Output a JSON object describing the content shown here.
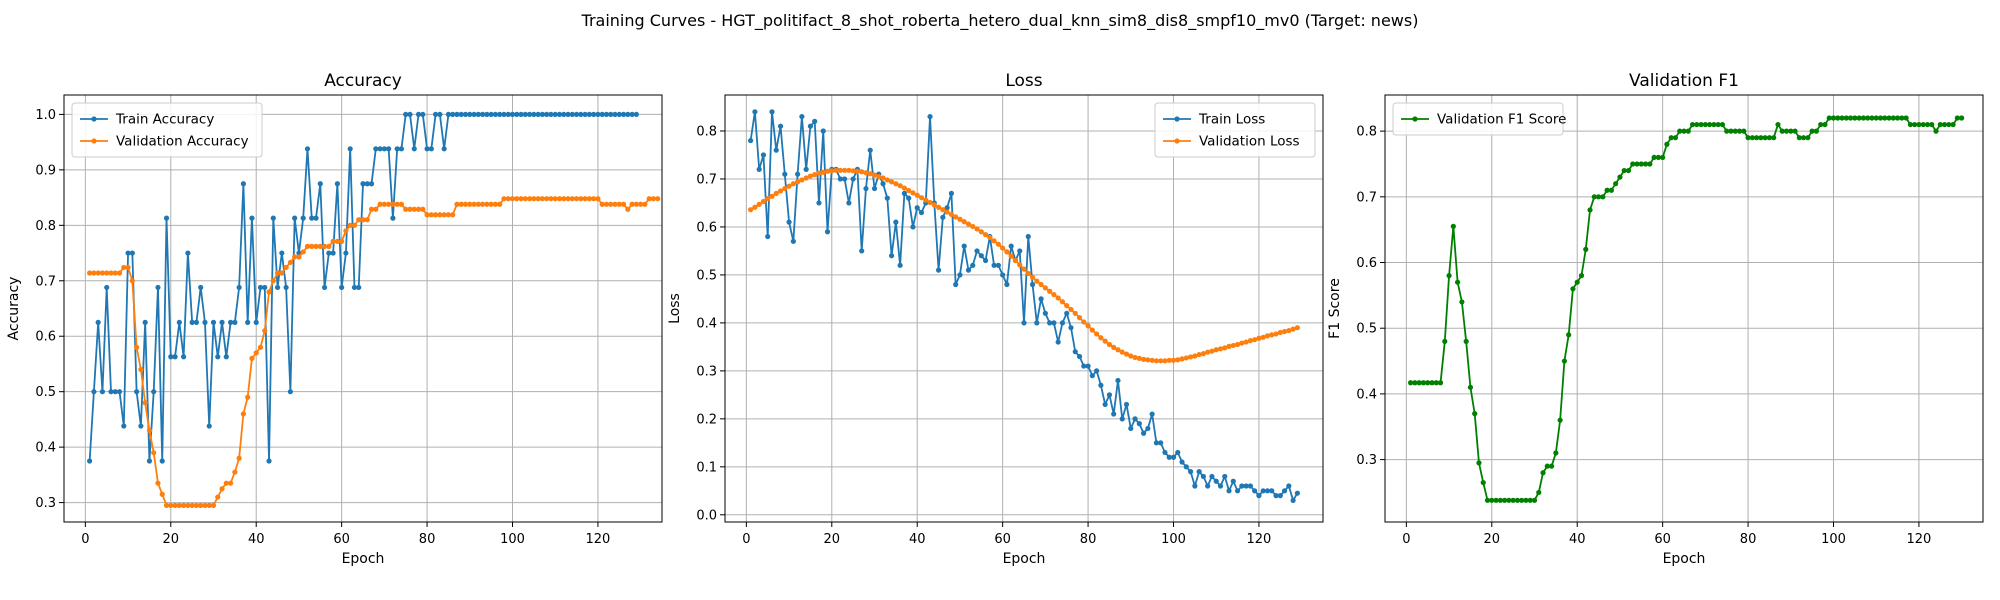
{
  "figure": {
    "suptitle": "Training Curves - HGT_politifact_8_shot_roberta_hetero_dual_knn_sim8_dis8_smpf10_mv0 (Target: news)"
  },
  "colors": {
    "train": "#1f77b4",
    "validation": "#ff7f0e",
    "f1": "#008000",
    "grid": "#b0b0b0"
  },
  "chart_data": [
    {
      "type": "line",
      "title": "Accuracy",
      "xlabel": "Epoch",
      "ylabel": "Accuracy",
      "xlim": [
        -5,
        135
      ],
      "ylim": [
        0.265,
        1.035
      ],
      "xticks": [
        0,
        20,
        40,
        60,
        80,
        100,
        120
      ],
      "yticks": [
        0.3,
        0.4,
        0.5,
        0.6,
        0.7,
        0.8,
        0.9,
        1.0
      ],
      "ytick_labels": [
        "0.3",
        "0.4",
        "0.5",
        "0.6",
        "0.7",
        "0.8",
        "0.9",
        "1.0"
      ],
      "grid": true,
      "legend_position": "upper-left",
      "series": [
        {
          "name": "Train Accuracy",
          "color": "#1f77b4",
          "x_start": 1,
          "values": [
            0.375,
            0.5,
            0.625,
            0.5,
            0.688,
            0.5,
            0.5,
            0.5,
            0.438,
            0.75,
            0.75,
            0.5,
            0.438,
            0.625,
            0.375,
            0.5,
            0.688,
            0.375,
            0.813,
            0.563,
            0.563,
            0.625,
            0.563,
            0.75,
            0.625,
            0.625,
            0.688,
            0.625,
            0.438,
            0.625,
            0.563,
            0.625,
            0.563,
            0.625,
            0.625,
            0.688,
            0.875,
            0.625,
            0.813,
            0.625,
            0.688,
            0.688,
            0.375,
            0.813,
            0.688,
            0.75,
            0.688,
            0.5,
            0.813,
            0.75,
            0.813,
            0.938,
            0.813,
            0.813,
            0.875,
            0.688,
            0.75,
            0.75,
            0.875,
            0.688,
            0.75,
            0.938,
            0.688,
            0.688,
            0.875,
            0.875,
            0.875,
            0.938,
            0.938,
            0.938,
            0.938,
            0.813,
            0.938,
            0.938,
            1.0,
            1.0,
            0.938,
            1.0,
            1.0,
            0.938,
            0.938,
            1.0,
            1.0,
            0.938,
            1.0,
            1.0,
            1.0,
            1.0,
            1.0,
            1.0,
            1.0,
            1.0,
            1.0,
            1.0,
            1.0,
            1.0,
            1.0,
            1.0,
            1.0,
            1.0,
            1.0,
            1.0,
            1.0,
            1.0,
            1.0,
            1.0,
            1.0,
            1.0,
            1.0,
            1.0,
            1.0,
            1.0,
            1.0,
            1.0,
            1.0,
            1.0,
            1.0,
            1.0,
            1.0,
            1.0,
            1.0,
            1.0,
            1.0,
            1.0,
            1.0,
            1.0,
            1.0,
            1.0,
            1.0
          ]
        },
        {
          "name": "Validation Accuracy",
          "color": "#ff7f0e",
          "x_start": 1,
          "values": [
            0.714,
            0.714,
            0.714,
            0.714,
            0.714,
            0.714,
            0.714,
            0.714,
            0.724,
            0.724,
            0.7,
            0.58,
            0.54,
            0.48,
            0.43,
            0.39,
            0.335,
            0.315,
            0.295,
            0.295,
            0.295,
            0.295,
            0.295,
            0.295,
            0.295,
            0.295,
            0.295,
            0.295,
            0.295,
            0.295,
            0.31,
            0.325,
            0.335,
            0.335,
            0.355,
            0.38,
            0.46,
            0.49,
            0.56,
            0.57,
            0.58,
            0.61,
            0.68,
            0.7,
            0.714,
            0.714,
            0.724,
            0.733,
            0.743,
            0.743,
            0.752,
            0.762,
            0.762,
            0.762,
            0.762,
            0.762,
            0.762,
            0.771,
            0.771,
            0.771,
            0.79,
            0.8,
            0.8,
            0.81,
            0.81,
            0.81,
            0.829,
            0.829,
            0.838,
            0.838,
            0.838,
            0.838,
            0.838,
            0.838,
            0.829,
            0.829,
            0.829,
            0.829,
            0.829,
            0.819,
            0.819,
            0.819,
            0.819,
            0.819,
            0.819,
            0.819,
            0.838,
            0.838,
            0.838,
            0.838,
            0.838,
            0.838,
            0.838,
            0.838,
            0.838,
            0.838,
            0.838,
            0.848,
            0.848,
            0.848,
            0.848,
            0.848,
            0.848,
            0.848,
            0.848,
            0.848,
            0.848,
            0.848,
            0.848,
            0.848,
            0.848,
            0.848,
            0.848,
            0.848,
            0.848,
            0.848,
            0.848,
            0.848,
            0.848,
            0.848,
            0.838,
            0.838,
            0.838,
            0.838,
            0.838,
            0.838,
            0.829,
            0.838,
            0.838,
            0.838,
            0.838,
            0.848,
            0.848,
            0.848
          ]
        }
      ]
    },
    {
      "type": "line",
      "title": "Loss",
      "xlabel": "Epoch",
      "ylabel": "Loss",
      "xlim": [
        -5,
        135
      ],
      "ylim": [
        -0.015,
        0.875
      ],
      "xticks": [
        0,
        20,
        40,
        60,
        80,
        100,
        120
      ],
      "yticks": [
        0.0,
        0.1,
        0.2,
        0.3,
        0.4,
        0.5,
        0.6,
        0.7,
        0.8
      ],
      "ytick_labels": [
        "0.0",
        "0.1",
        "0.2",
        "0.3",
        "0.4",
        "0.5",
        "0.6",
        "0.7",
        "0.8"
      ],
      "grid": true,
      "legend_position": "upper-right",
      "series": [
        {
          "name": "Train Loss",
          "color": "#1f77b4",
          "x_start": 1,
          "values": [
            0.78,
            0.84,
            0.72,
            0.75,
            0.58,
            0.84,
            0.76,
            0.81,
            0.71,
            0.61,
            0.57,
            0.71,
            0.83,
            0.72,
            0.81,
            0.82,
            0.65,
            0.8,
            0.59,
            0.72,
            0.72,
            0.7,
            0.7,
            0.65,
            0.7,
            0.72,
            0.55,
            0.68,
            0.76,
            0.68,
            0.71,
            0.69,
            0.66,
            0.54,
            0.61,
            0.52,
            0.67,
            0.66,
            0.6,
            0.64,
            0.63,
            0.65,
            0.83,
            0.65,
            0.51,
            0.62,
            0.64,
            0.67,
            0.48,
            0.5,
            0.56,
            0.51,
            0.52,
            0.55,
            0.54,
            0.53,
            0.58,
            0.52,
            0.52,
            0.5,
            0.48,
            0.56,
            0.53,
            0.55,
            0.4,
            0.58,
            0.48,
            0.4,
            0.45,
            0.42,
            0.4,
            0.4,
            0.36,
            0.4,
            0.42,
            0.39,
            0.34,
            0.33,
            0.31,
            0.31,
            0.29,
            0.3,
            0.27,
            0.23,
            0.25,
            0.21,
            0.28,
            0.2,
            0.23,
            0.18,
            0.2,
            0.19,
            0.17,
            0.18,
            0.21,
            0.15,
            0.15,
            0.13,
            0.12,
            0.12,
            0.13,
            0.11,
            0.1,
            0.09,
            0.06,
            0.09,
            0.08,
            0.06,
            0.08,
            0.07,
            0.06,
            0.08,
            0.05,
            0.07,
            0.05,
            0.06,
            0.06,
            0.06,
            0.05,
            0.04,
            0.05,
            0.05,
            0.05,
            0.04,
            0.04,
            0.05,
            0.06,
            0.03,
            0.045
          ]
        },
        {
          "name": "Validation Loss",
          "color": "#ff7f0e",
          "x_start": 1,
          "values": [
            0.636,
            0.641,
            0.647,
            0.653,
            0.659,
            0.664,
            0.67,
            0.675,
            0.68,
            0.685,
            0.69,
            0.694,
            0.698,
            0.702,
            0.706,
            0.709,
            0.712,
            0.714,
            0.716,
            0.717,
            0.718,
            0.718,
            0.718,
            0.718,
            0.717,
            0.716,
            0.715,
            0.713,
            0.711,
            0.708,
            0.705,
            0.702,
            0.698,
            0.694,
            0.69,
            0.686,
            0.681,
            0.676,
            0.671,
            0.666,
            0.661,
            0.656,
            0.651,
            0.646,
            0.641,
            0.636,
            0.631,
            0.626,
            0.621,
            0.616,
            0.611,
            0.606,
            0.601,
            0.596,
            0.59,
            0.584,
            0.578,
            0.571,
            0.564,
            0.556,
            0.548,
            0.539,
            0.53,
            0.521,
            0.512,
            0.503,
            0.495,
            0.487,
            0.48,
            0.473,
            0.466,
            0.459,
            0.452,
            0.444,
            0.436,
            0.428,
            0.42,
            0.411,
            0.402,
            0.394,
            0.385,
            0.377,
            0.369,
            0.362,
            0.355,
            0.349,
            0.344,
            0.339,
            0.335,
            0.331,
            0.328,
            0.326,
            0.324,
            0.323,
            0.322,
            0.321,
            0.321,
            0.321,
            0.322,
            0.322,
            0.323,
            0.325,
            0.327,
            0.329,
            0.331,
            0.334,
            0.336,
            0.339,
            0.341,
            0.344,
            0.346,
            0.348,
            0.351,
            0.353,
            0.355,
            0.358,
            0.36,
            0.363,
            0.365,
            0.368,
            0.37,
            0.373,
            0.375,
            0.377,
            0.38,
            0.382,
            0.384,
            0.387,
            0.39
          ]
        }
      ]
    },
    {
      "type": "line",
      "title": "Validation F1",
      "xlabel": "Epoch",
      "ylabel": "F1 Score",
      "xlim": [
        -5,
        135
      ],
      "ylim": [
        0.205,
        0.855
      ],
      "xticks": [
        0,
        20,
        40,
        60,
        80,
        100,
        120
      ],
      "yticks": [
        0.3,
        0.4,
        0.5,
        0.6,
        0.7,
        0.8
      ],
      "ytick_labels": [
        "0.3",
        "0.4",
        "0.5",
        "0.6",
        "0.7",
        "0.8"
      ],
      "grid": true,
      "legend_position": "upper-left",
      "series": [
        {
          "name": "Validation F1 Score",
          "color": "#008000",
          "x_start": 1,
          "values": [
            0.417,
            0.417,
            0.417,
            0.417,
            0.417,
            0.417,
            0.417,
            0.417,
            0.48,
            0.58,
            0.655,
            0.57,
            0.54,
            0.48,
            0.41,
            0.37,
            0.295,
            0.265,
            0.238,
            0.238,
            0.238,
            0.238,
            0.238,
            0.238,
            0.238,
            0.238,
            0.238,
            0.238,
            0.238,
            0.238,
            0.25,
            0.28,
            0.29,
            0.29,
            0.31,
            0.36,
            0.45,
            0.49,
            0.56,
            0.57,
            0.58,
            0.62,
            0.68,
            0.7,
            0.7,
            0.7,
            0.71,
            0.71,
            0.72,
            0.73,
            0.74,
            0.74,
            0.75,
            0.75,
            0.75,
            0.75,
            0.75,
            0.76,
            0.76,
            0.76,
            0.78,
            0.79,
            0.79,
            0.8,
            0.8,
            0.8,
            0.81,
            0.81,
            0.81,
            0.81,
            0.81,
            0.81,
            0.81,
            0.81,
            0.8,
            0.8,
            0.8,
            0.8,
            0.8,
            0.79,
            0.79,
            0.79,
            0.79,
            0.79,
            0.79,
            0.79,
            0.81,
            0.8,
            0.8,
            0.8,
            0.8,
            0.79,
            0.79,
            0.79,
            0.8,
            0.8,
            0.81,
            0.81,
            0.82,
            0.82,
            0.82,
            0.82,
            0.82,
            0.82,
            0.82,
            0.82,
            0.82,
            0.82,
            0.82,
            0.82,
            0.82,
            0.82,
            0.82,
            0.82,
            0.82,
            0.82,
            0.82,
            0.81,
            0.81,
            0.81,
            0.81,
            0.81,
            0.81,
            0.8,
            0.81,
            0.81,
            0.81,
            0.81,
            0.82,
            0.82
          ]
        }
      ]
    }
  ]
}
